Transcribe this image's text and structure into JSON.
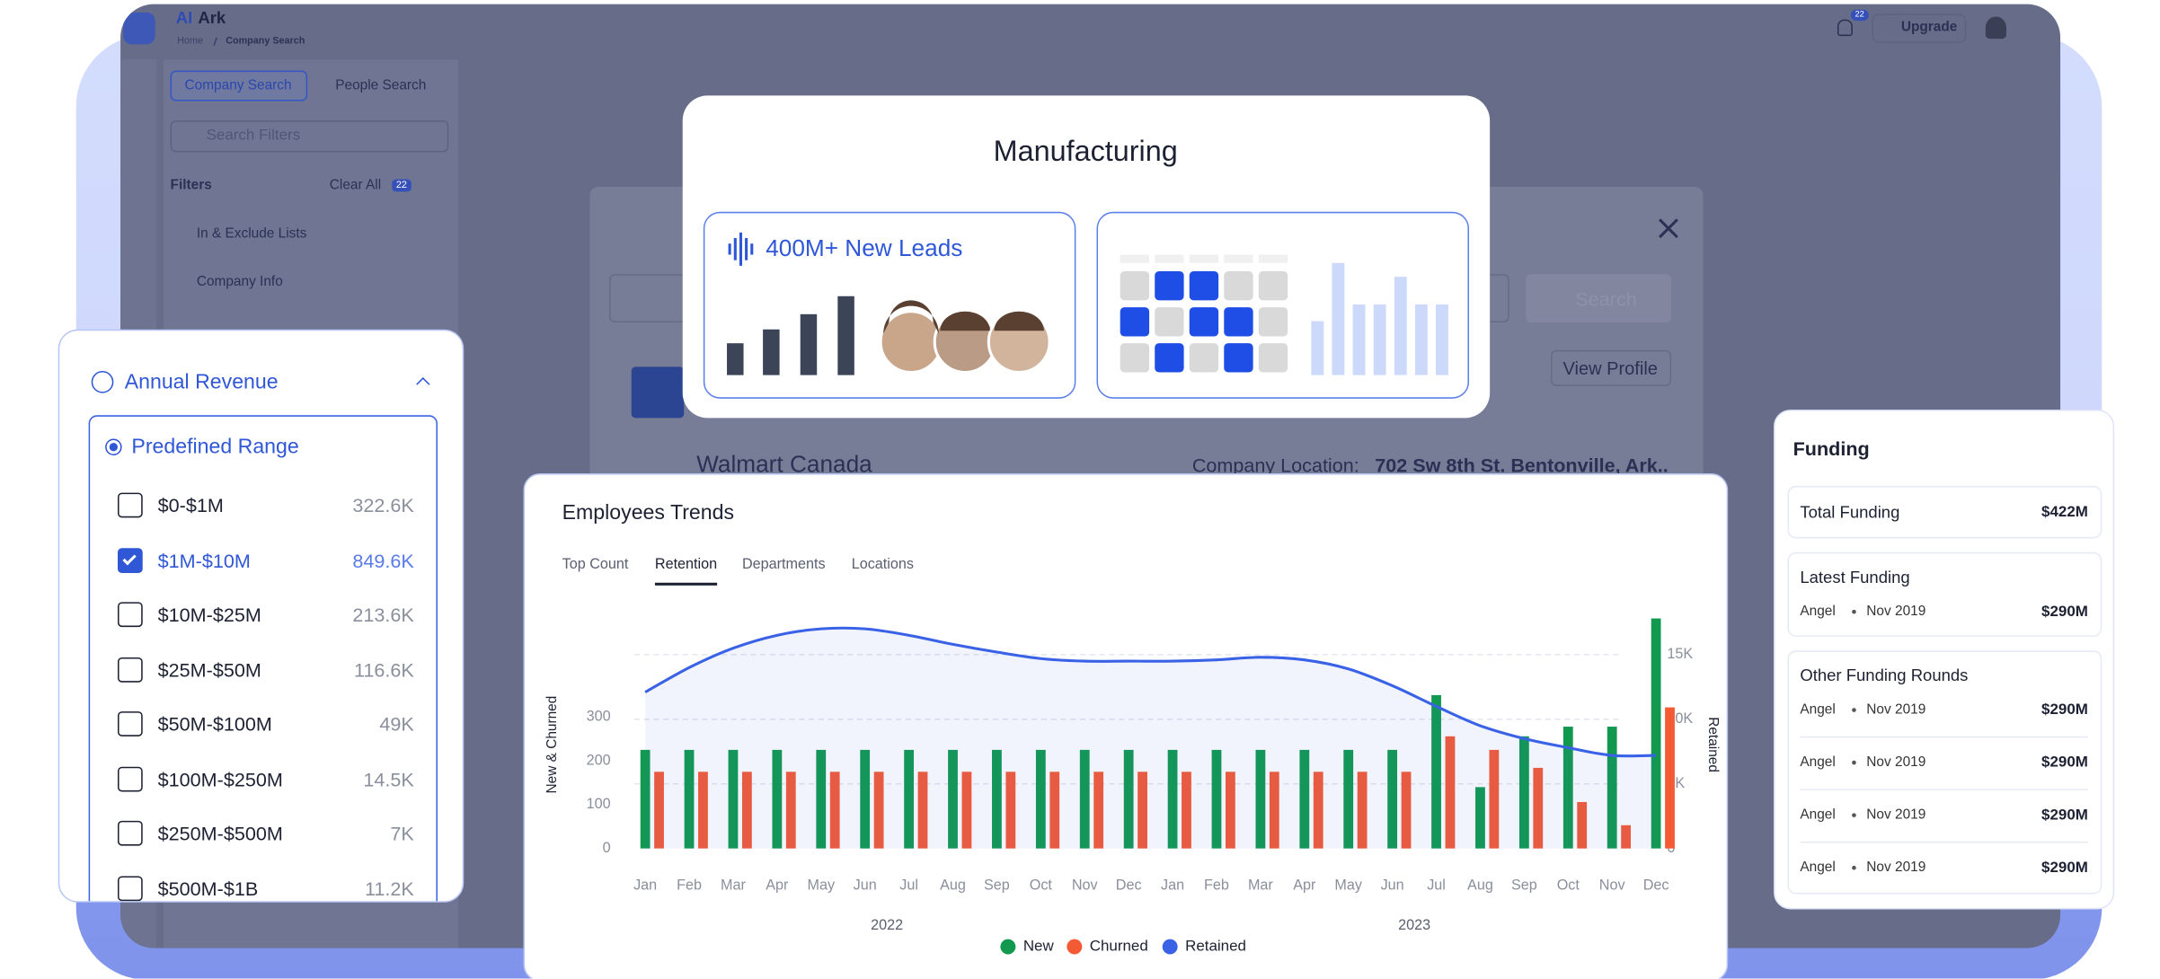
{
  "app": {
    "brand_prefix": "AI",
    "brand": "Ark",
    "breadcrumb": [
      "Home",
      "Company Search"
    ],
    "notifications": "22",
    "upgrade": "Upgrade",
    "tabs": [
      "Company Search",
      "People Search"
    ],
    "search_placeholder": "Search Filters",
    "filters": "Filters",
    "clear_all": "Clear All",
    "clear_count": "22",
    "filter_groups": [
      "In & Exclude Lists",
      "Company Info"
    ],
    "company": "Walmart Canada",
    "view_profile": "View Profile",
    "location_label": "Company Location:",
    "location": "702 Sw 8th St. Bentonville, Ark..",
    "search_button": "Search"
  },
  "manufacturing": {
    "title": "Manufacturing",
    "leads": "400M+ New Leads"
  },
  "revenue": {
    "title": "Annual Revenue",
    "mode": "Predefined Range",
    "ranges": [
      {
        "label": "$0-$1M",
        "count": "322.6K",
        "checked": false
      },
      {
        "label": "$1M-$10M",
        "count": "849.6K",
        "checked": true
      },
      {
        "label": "$10M-$25M",
        "count": "213.6K",
        "checked": false
      },
      {
        "label": "$25M-$50M",
        "count": "116.6K",
        "checked": false
      },
      {
        "label": "$50M-$100M",
        "count": "49K",
        "checked": false
      },
      {
        "label": "$100M-$250M",
        "count": "14.5K",
        "checked": false
      },
      {
        "label": "$250M-$500M",
        "count": "7K",
        "checked": false
      },
      {
        "label": "$500M-$1B",
        "count": "11.2K",
        "checked": false
      }
    ]
  },
  "funding": {
    "title": "Funding",
    "total": {
      "label": "Total Funding",
      "value": "$422M"
    },
    "latest": {
      "label": "Latest Funding",
      "round": "Angel",
      "date": "Nov 2019",
      "value": "$290M"
    },
    "other": {
      "label": "Other Funding Rounds",
      "rounds": [
        {
          "round": "Angel",
          "date": "Nov 2019",
          "value": "$290M"
        },
        {
          "round": "Angel",
          "date": "Nov 2019",
          "value": "$290M"
        },
        {
          "round": "Angel",
          "date": "Nov 2019",
          "value": "$290M"
        },
        {
          "round": "Angel",
          "date": "Nov 2019",
          "value": "$290M"
        }
      ]
    }
  },
  "chart_data": {
    "type": "combo",
    "title": "Employees Trends",
    "tabs": [
      "Top Count",
      "Retention",
      "Departments",
      "Locations"
    ],
    "active_tab": 1,
    "categories": [
      "Jan",
      "Feb",
      "Mar",
      "Apr",
      "May",
      "Jun",
      "Jul",
      "Aug",
      "Sep",
      "Oct",
      "Nov",
      "Dec",
      "Jan",
      "Feb",
      "Mar",
      "Apr",
      "May",
      "Jun",
      "Jul",
      "Aug",
      "Sep",
      "Oct",
      "Nov",
      "Dec"
    ],
    "years": [
      "2022",
      "2023"
    ],
    "ylabel": "New & Churned",
    "y2label": "Retained",
    "ylim": [
      0,
      575
    ],
    "yticks": [
      0,
      100,
      200,
      300
    ],
    "y2lim": [
      0,
      19500
    ],
    "y2ticks": [
      0,
      {
        "value": 5000,
        "label": "5K"
      },
      {
        "value": 10000,
        "label": "10K"
      },
      {
        "value": 15000,
        "label": "15K"
      }
    ],
    "grid": true,
    "legend": "bottom",
    "series": [
      {
        "name": "New",
        "color": "#12994f",
        "type": "bar",
        "values": [
          225,
          225,
          225,
          225,
          225,
          225,
          225,
          225,
          225,
          225,
          225,
          225,
          225,
          225,
          225,
          225,
          225,
          225,
          350,
          140,
          256,
          278,
          278,
          525
        ]
      },
      {
        "name": "Churned",
        "color": "#f45b35",
        "type": "bar",
        "values": [
          175,
          175,
          175,
          175,
          175,
          175,
          175,
          175,
          175,
          175,
          175,
          175,
          175,
          175,
          175,
          175,
          175,
          175,
          256,
          225,
          184,
          106,
          53,
          322
        ]
      },
      {
        "name": "Retained",
        "color": "#3a62e6",
        "type": "line",
        "axis": "y2",
        "values": [
          12100,
          14000,
          15500,
          16500,
          17000,
          17000,
          16500,
          15800,
          15200,
          14700,
          14500,
          14500,
          14500,
          14600,
          14800,
          14600,
          13900,
          12600,
          11000,
          9500,
          8500,
          7800,
          7200,
          7200
        ]
      }
    ]
  }
}
